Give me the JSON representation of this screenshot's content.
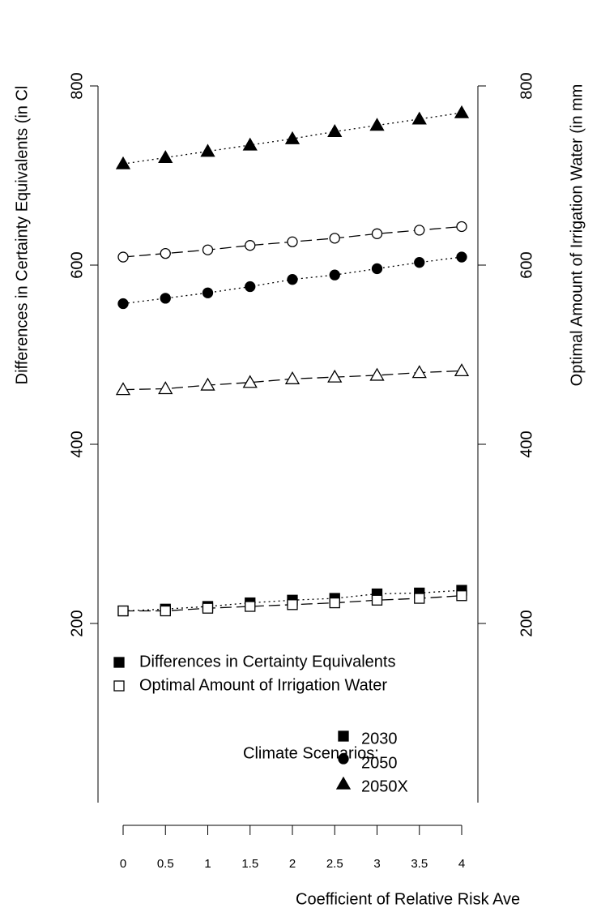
{
  "chart_data": {
    "type": "line",
    "ylabel": "Differences in Certainty Equivalents (in Cl",
    "y2label": "Optimal Amount of Irrigation Water (in mm",
    "xlabel": "Coefficient of Relative Risk Ave",
    "x": [
      0,
      0.5,
      1,
      1.5,
      2,
      2.5,
      3,
      3.5,
      4
    ],
    "xlim": [
      0,
      4
    ],
    "xticks": [
      0,
      0.5,
      1,
      1.5,
      2,
      2.5,
      3,
      3.5,
      4
    ],
    "ylim": [
      0,
      800
    ],
    "yticks": [
      200,
      400,
      600,
      800
    ],
    "y2lim": [
      0,
      800
    ],
    "y2ticks": [
      200,
      400,
      600,
      800
    ],
    "series": [
      {
        "shape": "triangle",
        "filled": true,
        "dash": "dotted",
        "values": [
          713,
          720,
          727,
          734,
          741,
          749,
          756,
          763,
          770
        ]
      },
      {
        "shape": "circle",
        "filled": false,
        "dash": "dashed",
        "values": [
          609,
          613,
          617,
          622,
          626,
          630,
          635,
          639,
          643
        ]
      },
      {
        "shape": "circle",
        "filled": true,
        "dash": "dotted",
        "values": [
          557,
          563,
          569,
          576,
          584,
          589,
          596,
          603,
          609
        ]
      },
      {
        "shape": "triangle",
        "filled": false,
        "dash": "dashed",
        "values": [
          461,
          462,
          466,
          469,
          473,
          475,
          477,
          480,
          482
        ]
      },
      {
        "shape": "square",
        "filled": true,
        "dash": "dotted",
        "values": [
          214,
          216,
          219,
          223,
          226,
          228,
          233,
          234,
          237
        ]
      },
      {
        "shape": "square",
        "filled": false,
        "dash": "dashed",
        "values": [
          214,
          214,
          217,
          219,
          221,
          223,
          226,
          228,
          231
        ]
      }
    ],
    "measure_legend": [
      {
        "label": "Differences in Certainty Equivalents",
        "filled": true
      },
      {
        "label": "Optimal Amount of Irrigation Water",
        "filled": false
      }
    ],
    "scenario_legend": {
      "title": "Climate Scenarios:",
      "items": [
        {
          "label": "2030",
          "shape": "square"
        },
        {
          "label": "2050",
          "shape": "circle"
        },
        {
          "label": "2050X",
          "shape": "triangle"
        }
      ]
    }
  }
}
